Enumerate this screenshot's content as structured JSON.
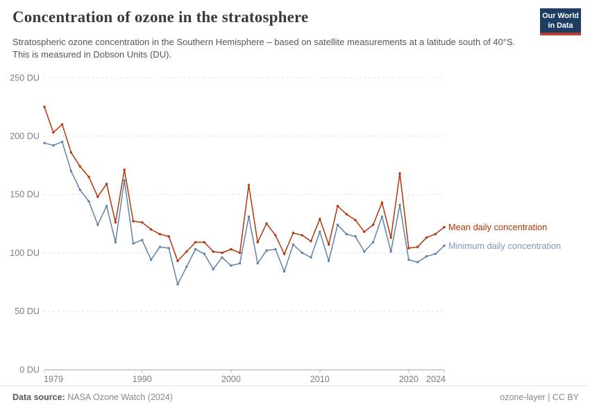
{
  "header": {
    "title": "Concentration of ozone in the stratosphere",
    "subtitle": "Stratospheric ozone concentration in the Southern Hemisphere – based on satellite measurements at a latitude south of 40°S. This is measured in Dobson Units (DU).",
    "logo": {
      "line1": "Our World",
      "line2": "in Data"
    }
  },
  "chart_data": {
    "type": "line",
    "title": "Concentration of ozone in the stratosphere",
    "xlabel": "",
    "ylabel": "Dobson Units (DU)",
    "x": [
      1979,
      1980,
      1981,
      1982,
      1983,
      1984,
      1985,
      1986,
      1987,
      1988,
      1989,
      1990,
      1991,
      1992,
      1993,
      1994,
      1995,
      1996,
      1997,
      1998,
      1999,
      2000,
      2001,
      2002,
      2003,
      2004,
      2005,
      2006,
      2007,
      2008,
      2009,
      2010,
      2011,
      2012,
      2013,
      2014,
      2015,
      2016,
      2017,
      2018,
      2019,
      2020,
      2021,
      2022,
      2023,
      2024
    ],
    "series": [
      {
        "name": "Mean daily concentration",
        "color": "#b13507",
        "label_color": "#b13507",
        "values": [
          225,
          203,
          210,
          186,
          174,
          165,
          148,
          159,
          126,
          171,
          127,
          126,
          120,
          116,
          114,
          93,
          101,
          109,
          109,
          101,
          100,
          103,
          100,
          158,
          109,
          125,
          115,
          99,
          117,
          115,
          110,
          129,
          107,
          140,
          133,
          128,
          118,
          124,
          143,
          113,
          168,
          104,
          105,
          113,
          116,
          122
        ]
      },
      {
        "name": "Minimum daily concentration",
        "color": "#5e81aa",
        "label_color": "#7d99c0",
        "values": [
          194,
          192,
          195,
          170,
          154,
          144,
          124,
          140,
          109,
          162,
          108,
          111,
          94,
          105,
          104,
          73,
          88,
          103,
          99,
          86,
          96,
          89,
          91,
          131,
          91,
          102,
          103,
          84,
          107,
          100,
          96,
          118,
          93,
          124,
          116,
          114,
          101,
          109,
          131,
          101,
          141,
          94,
          92,
          97,
          99,
          106
        ]
      }
    ],
    "xlim": [
      1979,
      2024
    ],
    "ylim": [
      0,
      250
    ],
    "yticks": [
      0,
      50,
      100,
      150,
      200,
      250
    ],
    "ytick_suffix": " DU",
    "xticks": [
      1979,
      1990,
      2000,
      2010,
      2020,
      2024
    ],
    "grid": "horizontal-dashed",
    "legend": "labels-at-line-end"
  },
  "footer": {
    "datasource_label": "Data source:",
    "datasource_value": "NASA Ozone Watch (2024)",
    "license": "ozone-layer | CC BY"
  }
}
